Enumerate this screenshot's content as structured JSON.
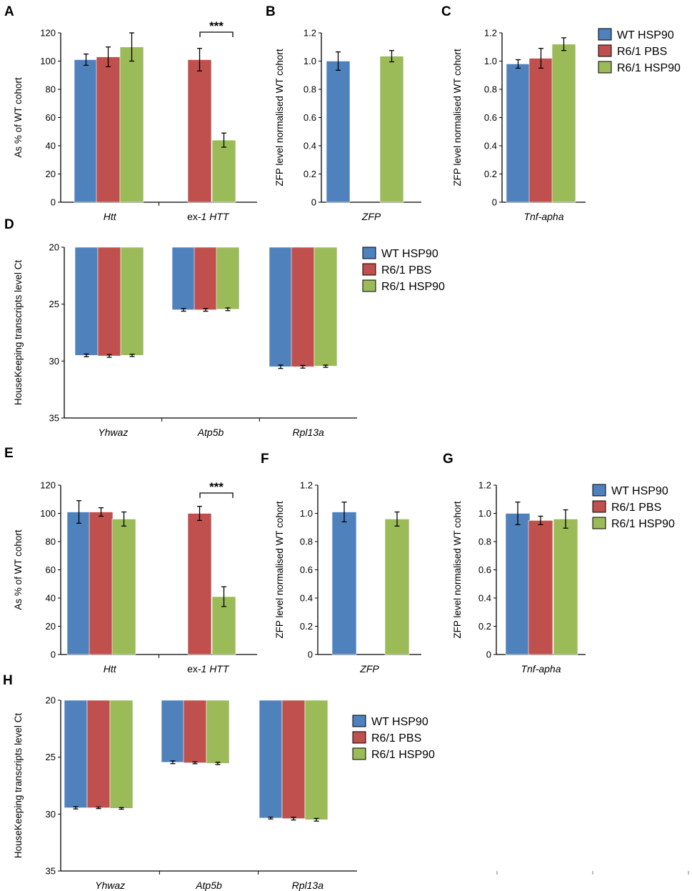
{
  "colors": {
    "wt_hsp90": "#4f81bd",
    "r61_pbs": "#c0504d",
    "r61_hsp90": "#9bbb59"
  },
  "legend": [
    "WT HSP90",
    "R6/1 PBS",
    "R6/1 HSP90"
  ],
  "chart_data": [
    {
      "panel": "A",
      "type": "bar",
      "ylabel": "As % of WT cohort",
      "ylim": [
        0,
        120
      ],
      "yticks": [
        "0",
        "20",
        "40",
        "60",
        "80",
        "100",
        "120"
      ],
      "categories": [
        {
          "pre": "",
          "it": "Htt"
        },
        {
          "pre": "ex-",
          "it": "1 HTT"
        }
      ],
      "series": [
        {
          "name": "WT HSP90",
          "values": [
            101,
            null
          ],
          "errors": [
            4,
            null
          ]
        },
        {
          "name": "R6/1 PBS",
          "values": [
            103,
            101
          ],
          "errors": [
            7,
            8
          ]
        },
        {
          "name": "R6/1 HSP90",
          "values": [
            110,
            44
          ],
          "errors": [
            10,
            5
          ]
        }
      ],
      "significance": {
        "label": "***",
        "category": 1
      }
    },
    {
      "panel": "B",
      "type": "bar",
      "ylabel": "ZFP level normalised WT cohort",
      "ylim": [
        0,
        1.2
      ],
      "yticks": [
        "0",
        "0.2",
        "0.4",
        "0.6",
        "0.8",
        "1.0",
        "1.2"
      ],
      "categories": [
        {
          "pre": "",
          "it": "ZFP"
        }
      ],
      "series": [
        {
          "name": "WT HSP90",
          "values": [
            1.0
          ],
          "errors": [
            0.065
          ]
        },
        {
          "name": "R6/1 PBS",
          "values": [
            null
          ],
          "errors": [
            null
          ]
        },
        {
          "name": "R6/1 HSP90",
          "values": [
            1.035
          ],
          "errors": [
            0.04
          ]
        }
      ]
    },
    {
      "panel": "C",
      "type": "bar",
      "ylabel": "ZFP level normalised WT cohort",
      "ylim": [
        0,
        1.2
      ],
      "yticks": [
        "0",
        "0.2",
        "0.4",
        "0.6",
        "0.8",
        "1.0",
        "1.2"
      ],
      "categories": [
        {
          "pre": "",
          "it": "Tnf-apha"
        }
      ],
      "series": [
        {
          "name": "WT HSP90",
          "values": [
            0.98
          ],
          "errors": [
            0.03
          ]
        },
        {
          "name": "R6/1 PBS",
          "values": [
            1.02
          ],
          "errors": [
            0.07
          ]
        },
        {
          "name": "R6/1 HSP90",
          "values": [
            1.12
          ],
          "errors": [
            0.045
          ]
        }
      ]
    },
    {
      "panel": "D",
      "type": "bar",
      "ylabel": "HouseKeeping transcripts level Ct",
      "ylim": [
        20,
        35
      ],
      "inverted": true,
      "yticks": [
        "20",
        "25",
        "30",
        "35"
      ],
      "categories": [
        {
          "pre": "",
          "it": "Yhwaz"
        },
        {
          "pre": "",
          "it": "Atp5b"
        },
        {
          "pre": "",
          "it": "Rpl13a"
        }
      ],
      "series": [
        {
          "name": "WT HSP90",
          "values": [
            29.5,
            25.5,
            30.5
          ],
          "errors": [
            0.12,
            0.12,
            0.15
          ]
        },
        {
          "name": "R6/1 PBS",
          "values": [
            29.55,
            25.5,
            30.5
          ],
          "errors": [
            0.12,
            0.12,
            0.12
          ]
        },
        {
          "name": "R6/1 HSP90",
          "values": [
            29.5,
            25.45,
            30.45
          ],
          "errors": [
            0.1,
            0.12,
            0.1
          ]
        }
      ]
    },
    {
      "panel": "E",
      "type": "bar",
      "ylabel": "As % of WT cohort",
      "ylim": [
        0,
        120
      ],
      "yticks": [
        "0",
        "20",
        "40",
        "60",
        "80",
        "100",
        "120"
      ],
      "categories": [
        {
          "pre": "",
          "it": "Htt"
        },
        {
          "pre": "ex-",
          "it": "1 HTT"
        }
      ],
      "series": [
        {
          "name": "WT HSP90",
          "values": [
            101,
            null
          ],
          "errors": [
            8,
            null
          ]
        },
        {
          "name": "R6/1 PBS",
          "values": [
            101,
            100
          ],
          "errors": [
            3,
            5
          ]
        },
        {
          "name": "R6/1 HSP90",
          "values": [
            96,
            41
          ],
          "errors": [
            5,
            7
          ]
        }
      ],
      "significance": {
        "label": "***",
        "category": 1
      }
    },
    {
      "panel": "F",
      "type": "bar",
      "ylabel": "ZFP level normalised WT cohort",
      "ylim": [
        0,
        1.2
      ],
      "yticks": [
        "0",
        "0.2",
        "0.4",
        "0.6",
        "0.8",
        "1.0",
        "1.2"
      ],
      "categories": [
        {
          "pre": "",
          "it": "ZFP"
        }
      ],
      "series": [
        {
          "name": "WT HSP90",
          "values": [
            1.01
          ],
          "errors": [
            0.07
          ]
        },
        {
          "name": "R6/1 PBS",
          "values": [
            null
          ],
          "errors": [
            null
          ]
        },
        {
          "name": "R6/1 HSP90",
          "values": [
            0.96
          ],
          "errors": [
            0.05
          ]
        }
      ]
    },
    {
      "panel": "G",
      "type": "bar",
      "ylabel": "ZFP level normalised WT cohort",
      "ylim": [
        0,
        1.2
      ],
      "yticks": [
        "0",
        "0.2",
        "0.4",
        "0.6",
        "0.8",
        "1.0",
        "1.2"
      ],
      "categories": [
        {
          "pre": "",
          "it": "Tnf-apha"
        }
      ],
      "series": [
        {
          "name": "WT HSP90",
          "values": [
            1.0
          ],
          "errors": [
            0.08
          ]
        },
        {
          "name": "R6/1 PBS",
          "values": [
            0.95
          ],
          "errors": [
            0.03
          ]
        },
        {
          "name": "R6/1 HSP90",
          "values": [
            0.96
          ],
          "errors": [
            0.065
          ]
        }
      ]
    },
    {
      "panel": "H",
      "type": "bar",
      "ylabel": "HouseKeeping transcripts level Ct",
      "ylim": [
        20,
        35
      ],
      "inverted": true,
      "yticks": [
        "20",
        "25",
        "30",
        "35"
      ],
      "categories": [
        {
          "pre": "",
          "it": "Yhwaz"
        },
        {
          "pre": "",
          "it": "Atp5b"
        },
        {
          "pre": "",
          "it": "Rpl13a"
        }
      ],
      "series": [
        {
          "name": "WT HSP90",
          "values": [
            29.45,
            25.45,
            30.35
          ],
          "errors": [
            0.1,
            0.12,
            0.08
          ]
        },
        {
          "name": "R6/1 PBS",
          "values": [
            29.45,
            25.5,
            30.4
          ],
          "errors": [
            0.07,
            0.08,
            0.12
          ]
        },
        {
          "name": "R6/1 HSP90",
          "values": [
            29.5,
            25.55,
            30.5
          ],
          "errors": [
            0.07,
            0.1,
            0.12
          ]
        }
      ]
    }
  ]
}
